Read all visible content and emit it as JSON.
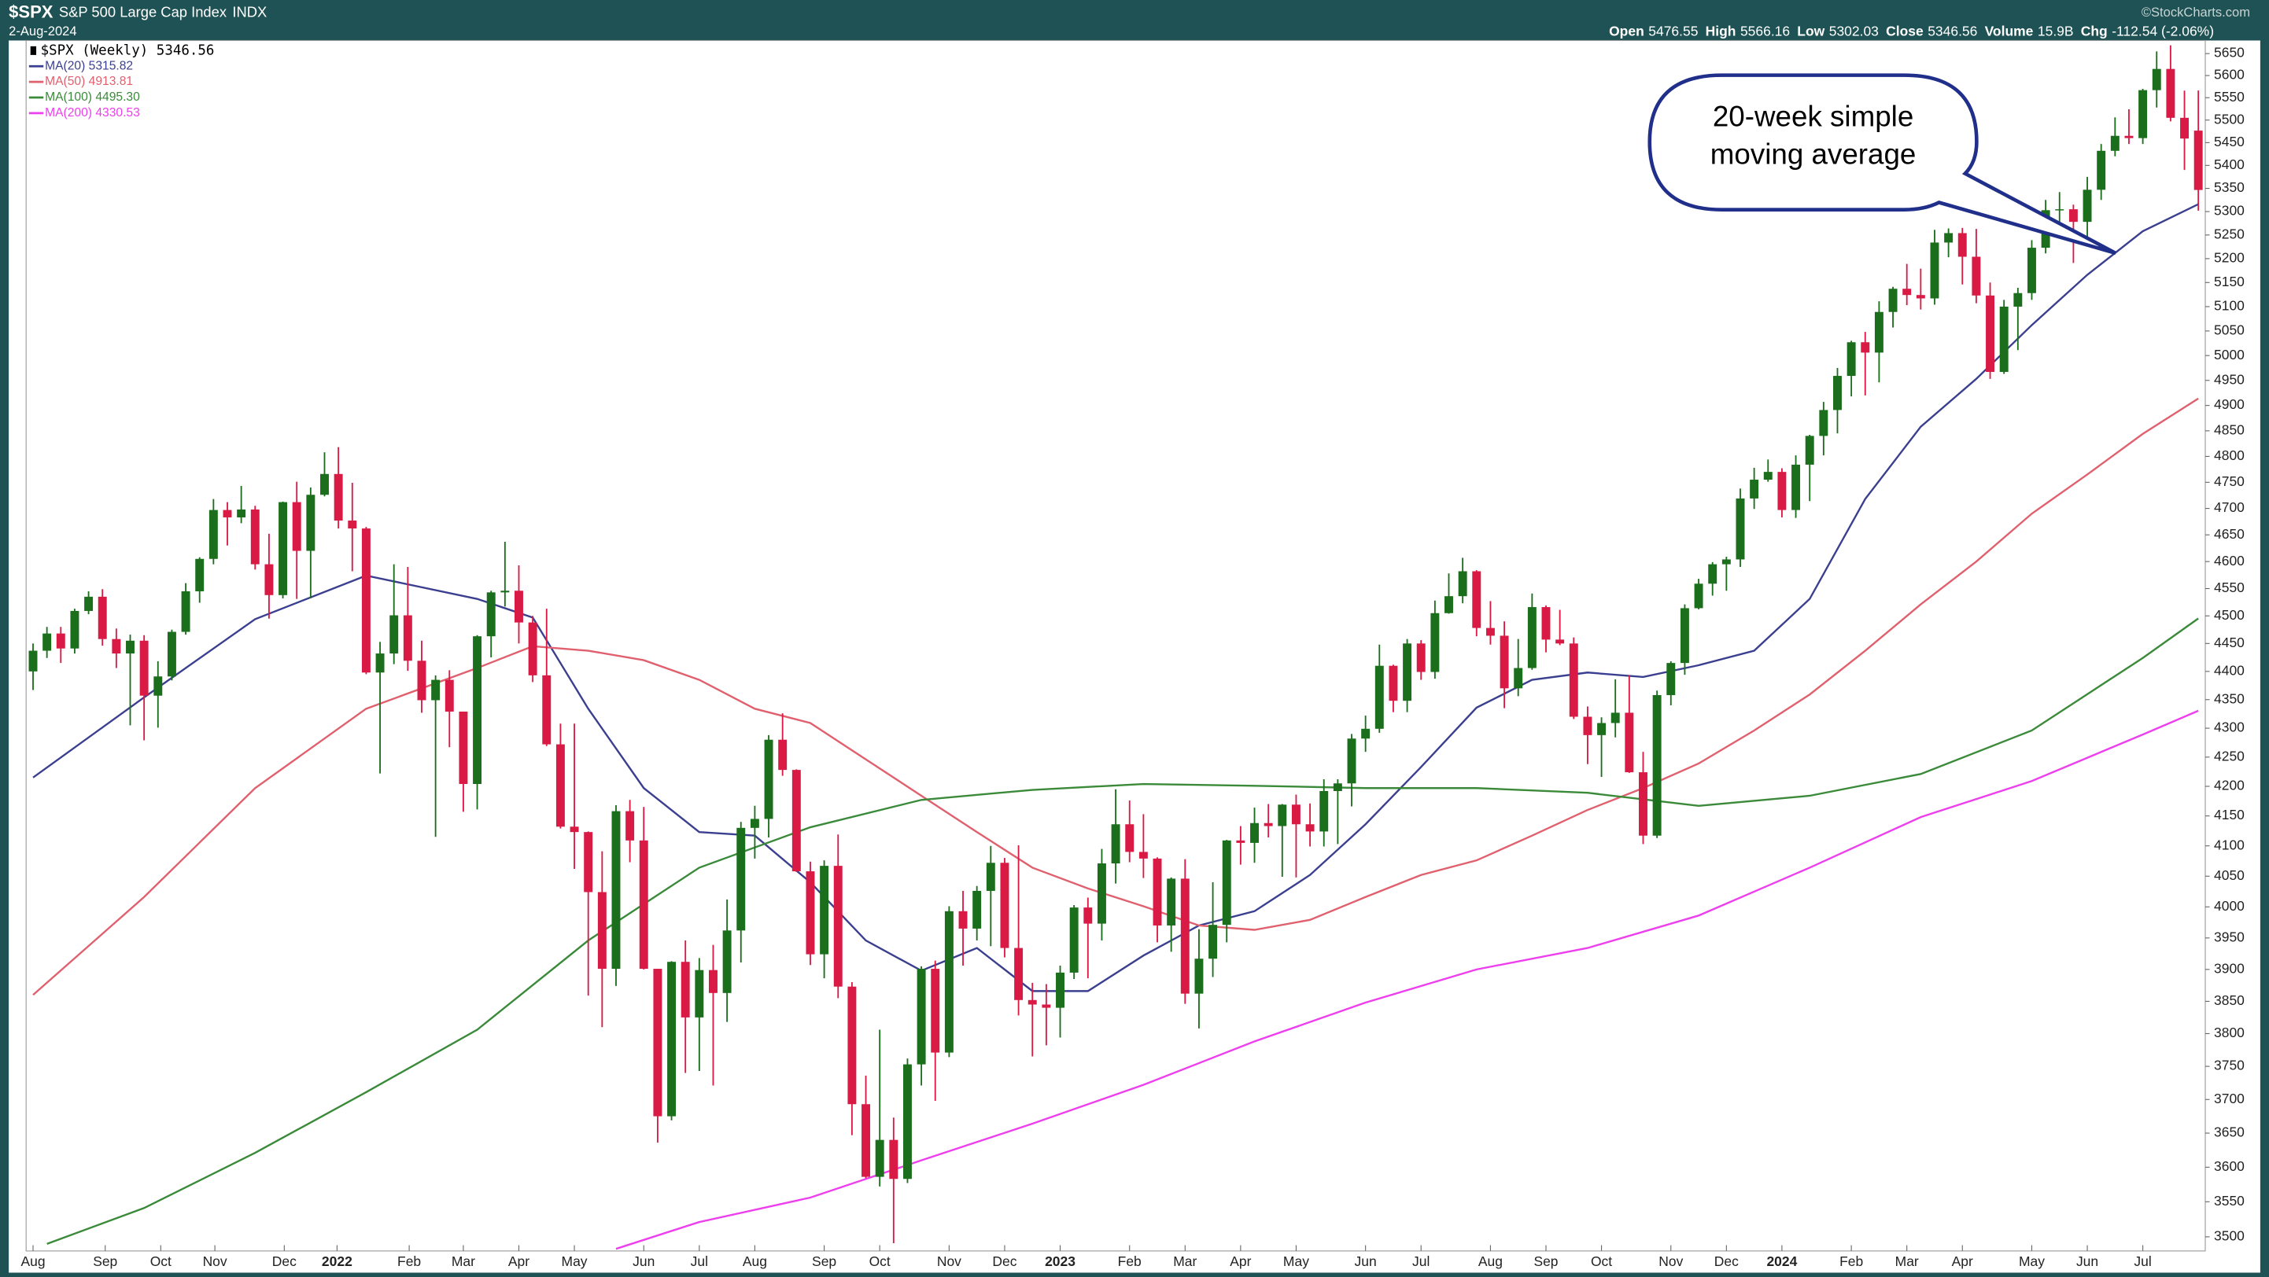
{
  "chart_data": {
    "type": "candlestick",
    "header": {
      "symbol": "$SPX",
      "name": "S&P 500 Large Cap Index",
      "exchange": "INDX",
      "date": "2-Aug-2024",
      "quote": [
        {
          "label": "Open",
          "value": 5476.55
        },
        {
          "label": "High",
          "value": 5566.16
        },
        {
          "label": "Low",
          "value": 5302.03
        },
        {
          "label": "Close",
          "value": 5346.56
        },
        {
          "label": "Volume",
          "value": "15.9B"
        },
        {
          "label": "Chg",
          "value": "-112.54 (-2.06%)"
        }
      ],
      "watermark": "©StockCharts.com"
    },
    "log_scale": true,
    "grid": false,
    "up_color": "#1b6e1b",
    "down_color": "#d81a45",
    "xlim": [
      -0.5,
      156.5
    ],
    "xticks": [
      {
        "value": 0,
        "label": "Aug"
      },
      {
        "value": 5.2,
        "label": "Sep"
      },
      {
        "value": 9.2,
        "label": "Oct"
      },
      {
        "value": 13.1,
        "label": "Nov"
      },
      {
        "value": 18.1,
        "label": "Dec"
      },
      {
        "value": 21.9,
        "label": "2022"
      },
      {
        "value": 27.1,
        "label": "Feb"
      },
      {
        "value": 31,
        "label": "Mar"
      },
      {
        "value": 35,
        "label": "Apr"
      },
      {
        "value": 39,
        "label": "May"
      },
      {
        "value": 44,
        "label": "Jun"
      },
      {
        "value": 48,
        "label": "Jul"
      },
      {
        "value": 52,
        "label": "Aug"
      },
      {
        "value": 57,
        "label": "Sep"
      },
      {
        "value": 61,
        "label": "Oct"
      },
      {
        "value": 66,
        "label": "Nov"
      },
      {
        "value": 70,
        "label": "Dec"
      },
      {
        "value": 74,
        "label": "2023"
      },
      {
        "value": 79,
        "label": "Feb"
      },
      {
        "value": 83,
        "label": "Mar"
      },
      {
        "value": 87,
        "label": "Apr"
      },
      {
        "value": 91,
        "label": "May"
      },
      {
        "value": 96,
        "label": "Jun"
      },
      {
        "value": 100,
        "label": "Jul"
      },
      {
        "value": 105,
        "label": "Aug"
      },
      {
        "value": 109,
        "label": "Sep"
      },
      {
        "value": 113,
        "label": "Oct"
      },
      {
        "value": 118,
        "label": "Nov"
      },
      {
        "value": 122,
        "label": "Dec"
      },
      {
        "value": 126,
        "label": "2024"
      },
      {
        "value": 131,
        "label": "Feb"
      },
      {
        "value": 135,
        "label": "Mar"
      },
      {
        "value": 139,
        "label": "Apr"
      },
      {
        "value": 144,
        "label": "May"
      },
      {
        "value": 148,
        "label": "Jun"
      },
      {
        "value": 152,
        "label": "Jul"
      }
    ],
    "ylim": [
      3480,
      5680
    ],
    "yticks": [
      3500,
      3550,
      3600,
      3650,
      3700,
      3750,
      3800,
      3850,
      3900,
      3950,
      4000,
      4050,
      4100,
      4150,
      4200,
      4250,
      4300,
      4350,
      4400,
      4450,
      4500,
      4550,
      4600,
      4650,
      4700,
      4750,
      4800,
      4850,
      4900,
      4950,
      5000,
      5050,
      5100,
      5150,
      5200,
      5250,
      5300,
      5350,
      5400,
      5450,
      5500,
      5550,
      5600,
      5650
    ],
    "candles": {
      "name": "$SPX (Weekly) 5346.56",
      "open": [
        4400,
        4437,
        4468,
        4441,
        4509,
        4535,
        4458,
        4432,
        4455,
        4357,
        4391,
        4471,
        4545,
        4605,
        4697,
        4683,
        4698,
        4595,
        4538,
        4712,
        4620,
        4726,
        4766,
        4677,
        4662,
        4398,
        4432,
        4501,
        4419,
        4349,
        4385,
        4329,
        4204,
        4463,
        4543,
        4546,
        4488,
        4393,
        4272,
        4132,
        4123,
        4024,
        3901,
        4158,
        4109,
        3901,
        3675,
        3912,
        3825,
        3899,
        3863,
        3962,
        4130,
        4145,
        4280,
        4228,
        4058,
        3924,
        4067,
        3873,
        3693,
        3586,
        3640,
        3583,
        3753,
        3901,
        3771,
        3993,
        3965,
        4026,
        4072,
        3934,
        3852,
        3845,
        3840,
        3895,
        3999,
        3973,
        4071,
        4136,
        4090,
        4079,
        3970,
        4046,
        3862,
        3917,
        3971,
        4109,
        4105,
        4138,
        4133,
        4169,
        4136,
        4124,
        4192,
        4205,
        4282,
        4299,
        4410,
        4348,
        4450,
        4399,
        4505,
        4536,
        4582,
        4478,
        4464,
        4370,
        4406,
        4516,
        4457,
        4450,
        4320,
        4288,
        4309,
        4327,
        4224,
        4117,
        4358,
        4415,
        4514,
        4559,
        4595,
        4604,
        4719,
        4755,
        4770,
        4697,
        4784,
        4840,
        4891,
        4959,
        5027,
        5006,
        5089,
        5137,
        5124,
        5117,
        5234,
        5254,
        5204,
        5123,
        4967,
        5100,
        5128,
        5223,
        5303,
        5305,
        5278,
        5347,
        5432,
        5465,
        5460,
        5567,
        5615,
        5505,
        5476.55
      ],
      "high": [
        4450,
        4480,
        4480,
        4513,
        4545,
        4549,
        4477,
        4466,
        4465,
        4418,
        4475,
        4560,
        4608,
        4718,
        4712,
        4743,
        4705,
        4652,
        4713,
        4751,
        4740,
        4808,
        4818,
        4749,
        4665,
        4453,
        4595,
        4590,
        4455,
        4393,
        4402,
        4329,
        4465,
        4546,
        4637,
        4593,
        4500,
        4513,
        4308,
        4308,
        4124,
        4091,
        4168,
        4177,
        4165,
        3901,
        3913,
        3946,
        3918,
        3939,
        4012,
        4140,
        4167,
        4288,
        4326,
        4229,
        4074,
        4076,
        4119,
        3880,
        3736,
        3806,
        3673,
        3762,
        3905,
        3914,
        4001,
        4026,
        4034,
        4100,
        4080,
        4101,
        3879,
        3877,
        3906,
        4003,
        4015,
        4095,
        4195,
        4176,
        4153,
        4081,
        4048,
        4078,
        3964,
        4040,
        4110,
        4133,
        4164,
        4170,
        4170,
        4186,
        4171,
        4212,
        4212,
        4290,
        4322,
        4448,
        4412,
        4458,
        4456,
        4528,
        4578,
        4607,
        4584,
        4527,
        4490,
        4458,
        4541,
        4519,
        4511,
        4461,
        4338,
        4319,
        4386,
        4393,
        4259,
        4366,
        4418,
        4521,
        4568,
        4599,
        4609,
        4738,
        4778,
        4794,
        4777,
        4802,
        4842,
        4907,
        4975,
        5030,
        5048,
        5111,
        5141,
        5189,
        5179,
        5261,
        5264,
        5265,
        5263,
        5150,
        5114,
        5139,
        5239,
        5325,
        5342,
        5315,
        5375,
        5447,
        5506,
        5524,
        5570,
        5655,
        5669,
        5566,
        5566.16
      ],
      "low": [
        4367,
        4424,
        4415,
        4432,
        4503,
        4446,
        4406,
        4305,
        4279,
        4301,
        4384,
        4466,
        4524,
        4595,
        4630,
        4672,
        4585,
        4495,
        4532,
        4531,
        4532,
        4723,
        4662,
        4582,
        4395,
        4222,
        4413,
        4401,
        4327,
        4115,
        4267,
        4157,
        4161,
        4425,
        4517,
        4450,
        4381,
        4269,
        4129,
        4062,
        3859,
        3810,
        3874,
        4073,
        3900,
        3636,
        3669,
        3740,
        3743,
        3721,
        3818,
        3911,
        4079,
        4114,
        4218,
        4057,
        3907,
        3886,
        3855,
        3647,
        3584,
        3572,
        3491,
        3577,
        3721,
        3698,
        3764,
        3906,
        3946,
        3937,
        3919,
        3828,
        3765,
        3782,
        3794,
        3885,
        3886,
        3946,
        4038,
        4073,
        4047,
        3943,
        3928,
        3846,
        3808,
        3888,
        3943,
        4069,
        4072,
        4114,
        4049,
        4048,
        4099,
        4099,
        4103,
        4166,
        4259,
        4292,
        4328,
        4328,
        4385,
        4387,
        4504,
        4523,
        4463,
        4448,
        4335,
        4356,
        4403,
        4434,
        4447,
        4316,
        4238,
        4216,
        4284,
        4223,
        4103,
        4113,
        4340,
        4394,
        4512,
        4537,
        4546,
        4590,
        4699,
        4751,
        4683,
        4682,
        4714,
        4802,
        4845,
        4918,
        4920,
        4946,
        5057,
        5103,
        5094,
        5104,
        5203,
        5146,
        5107,
        4953,
        4963,
        5011,
        5114,
        5211,
        5257,
        5191,
        5234,
        5325,
        5420,
        5447,
        5447,
        5528,
        5497,
        5390,
        5302.03
      ],
      "close": [
        4437,
        4468,
        4441,
        4509,
        4535,
        4458,
        4432,
        4455,
        4357,
        4391,
        4471,
        4545,
        4605,
        4697,
        4683,
        4698,
        4595,
        4538,
        4712,
        4620,
        4726,
        4766,
        4677,
        4662,
        4398,
        4432,
        4501,
        4419,
        4349,
        4385,
        4329,
        4204,
        4463,
        4543,
        4546,
        4488,
        4393,
        4272,
        4132,
        4123,
        4024,
        3901,
        4158,
        4109,
        3901,
        3675,
        3912,
        3825,
        3899,
        3863,
        3962,
        4130,
        4145,
        4280,
        4228,
        4058,
        3924,
        4067,
        3873,
        3693,
        3586,
        3640,
        3583,
        3753,
        3901,
        3771,
        3993,
        3965,
        4026,
        4072,
        3934,
        3852,
        3845,
        3840,
        3895,
        3999,
        3973,
        4071,
        4136,
        4090,
        4079,
        3970,
        4046,
        3862,
        3917,
        3971,
        4109,
        4105,
        4138,
        4133,
        4169,
        4136,
        4124,
        4192,
        4205,
        4282,
        4299,
        4410,
        4348,
        4450,
        4399,
        4505,
        4536,
        4582,
        4478,
        4464,
        4370,
        4406,
        4516,
        4457,
        4450,
        4320,
        4288,
        4309,
        4327,
        4224,
        4117,
        4358,
        4415,
        4514,
        4559,
        4595,
        4604,
        4719,
        4755,
        4770,
        4697,
        4784,
        4840,
        4891,
        4959,
        5027,
        5006,
        5089,
        5137,
        5124,
        5117,
        5234,
        5254,
        5204,
        5123,
        4967,
        5100,
        5128,
        5223,
        5303,
        5305,
        5278,
        5347,
        5432,
        5465,
        5460,
        5567,
        5615,
        5505,
        5459,
        5346.56
      ]
    },
    "series": [
      {
        "name": "MA(20) 5315.82",
        "color": "#3b3f8f",
        "x": [
          0,
          8,
          16,
          24,
          32,
          36,
          40,
          44,
          48,
          52,
          56,
          60,
          64,
          68,
          72,
          76,
          80,
          84,
          88,
          92,
          96,
          100,
          104,
          108,
          112,
          116,
          120,
          124,
          128,
          132,
          136,
          140,
          144,
          148,
          152,
          156
        ],
        "values": [
          4215,
          4354,
          4494,
          4574,
          4531,
          4497,
          4334,
          4197,
          4123,
          4117,
          4040,
          3946,
          3898,
          3934,
          3866,
          3866,
          3922,
          3970,
          3993,
          4052,
          4136,
          4233,
          4336,
          4385,
          4398,
          4390,
          4411,
          4437,
          4531,
          4718,
          4858,
          4953,
          5062,
          5166,
          5258,
          5315.82
        ]
      },
      {
        "name": "MA(50) 4913.81",
        "color": "#e0606e",
        "x": [
          0,
          8,
          16,
          24,
          32,
          36,
          40,
          44,
          48,
          52,
          56,
          60,
          64,
          68,
          72,
          76,
          80,
          84,
          88,
          92,
          96,
          100,
          104,
          108,
          112,
          116,
          120,
          124,
          128,
          132,
          136,
          140,
          144,
          148,
          152,
          156
        ],
        "values": [
          3860,
          4016,
          4197,
          4334,
          4406,
          4445,
          4437,
          4420,
          4385,
          4334,
          4309,
          4246,
          4184,
          4123,
          4064,
          4030,
          4001,
          3970,
          3963,
          3979,
          4016,
          4052,
          4076,
          4117,
          4160,
          4197,
          4239,
          4296,
          4359,
          4437,
          4521,
          4600,
          4690,
          4765,
          4844,
          4913.81
        ]
      },
      {
        "name": "MA(100) 4495.30",
        "color": "#3a8a3a",
        "x": [
          1,
          8,
          16,
          24,
          32,
          40,
          48,
          56,
          64,
          72,
          80,
          88,
          96,
          104,
          112,
          120,
          128,
          136,
          144,
          152,
          156
        ],
        "values": [
          3490,
          3541,
          3621,
          3711,
          3806,
          3946,
          4064,
          4131,
          4177,
          4194,
          4204,
          4201,
          4197,
          4197,
          4189,
          4167,
          4184,
          4221,
          4296,
          4424,
          4495.3
        ]
      },
      {
        "name": "MA(200) 4330.53",
        "color": "#ee3fee",
        "x": [
          42,
          48,
          56,
          64,
          72,
          80,
          88,
          96,
          104,
          112,
          120,
          128,
          136,
          144,
          152,
          156
        ],
        "values": [
          3483,
          3521,
          3556,
          3610,
          3664,
          3722,
          3788,
          3848,
          3900,
          3934,
          3986,
          4064,
          4148,
          4209,
          4289,
          4330.53
        ]
      }
    ],
    "annotation": [
      "20-week simple",
      "moving average"
    ]
  }
}
